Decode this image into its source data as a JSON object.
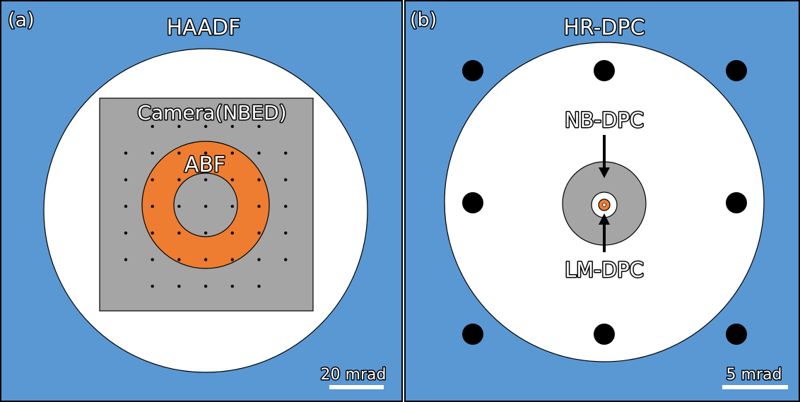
{
  "colors": {
    "background": "#5a98d4",
    "disk": "#ffffff",
    "camera": "#a5a5a5",
    "abf": "#ee7d31",
    "outline": "#000000",
    "dot": "#000000",
    "scalebar": "#ffffff"
  },
  "panel_a": {
    "letter": "(a)",
    "title": "HAADF",
    "camera_label": "Camera(NBED)",
    "abf_label": "ABF",
    "scalebar_label": "20 mrad",
    "dot_grid": {
      "rows": 7,
      "cols": 7,
      "corners_omitted": true
    }
  },
  "panel_b": {
    "letter": "(b)",
    "title": "HR-DPC",
    "nb_label": "NB-DPC",
    "lm_label": "LM-DPC",
    "scalebar_label": "5 mrad",
    "outer_detector_count": 8
  }
}
